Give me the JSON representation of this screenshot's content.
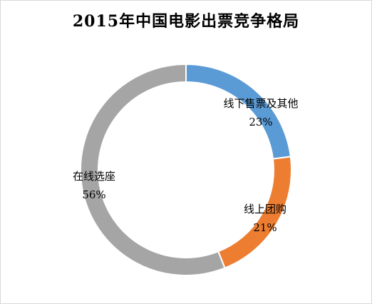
{
  "chart_data": {
    "type": "pie",
    "variant": "donut",
    "title": "2015年中国电影出票竞争格局",
    "slices": [
      {
        "label": "线下售票及其他",
        "value": 23,
        "value_text": "23%",
        "color": "#5b9bd5"
      },
      {
        "label": "线上团购",
        "value": 21,
        "value_text": "21%",
        "color": "#ed7d31"
      },
      {
        "label": "在线选座",
        "value": 56,
        "value_text": "56%",
        "color": "#a5a5a5"
      }
    ],
    "legend": "none"
  }
}
